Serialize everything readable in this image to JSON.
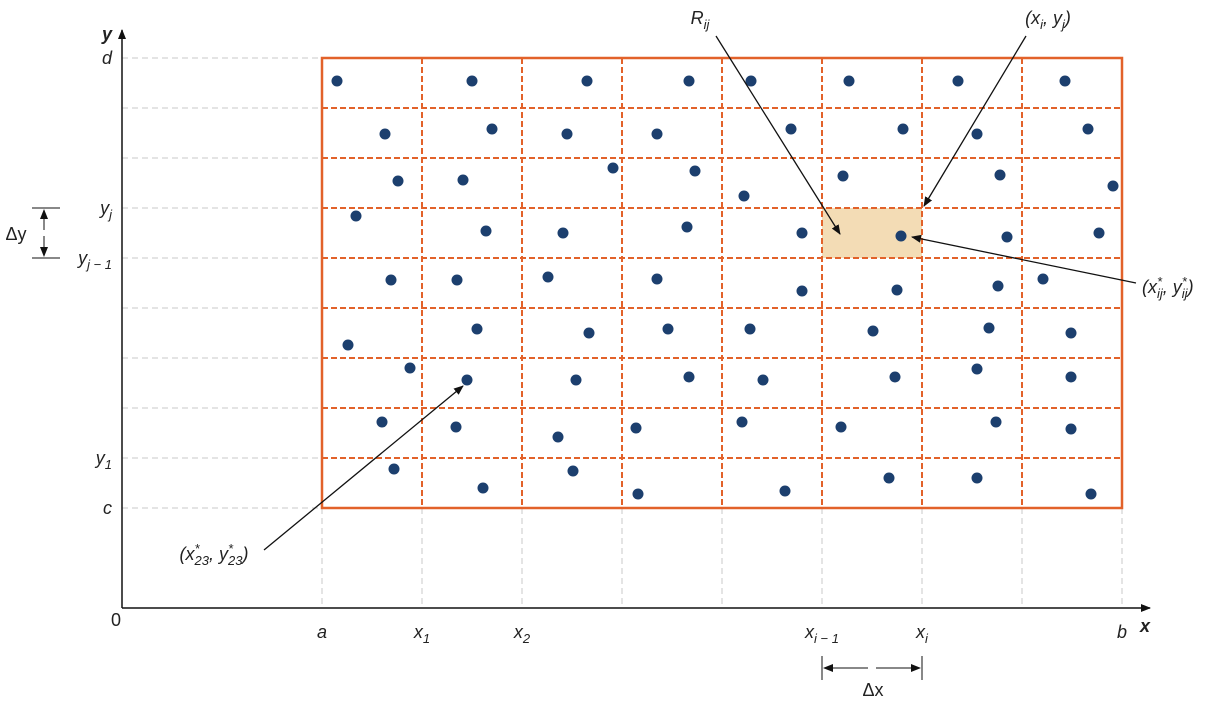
{
  "axes": {
    "x_label": "x",
    "y_label": "y",
    "origin": "0"
  },
  "y_ticks": [
    [
      {
        "text": "d"
      }
    ],
    [
      {
        "text": "y",
        "sub": "j"
      }
    ],
    [
      {
        "text": "y",
        "sub": "j − 1"
      }
    ],
    [
      {
        "text": "y",
        "sub": "1"
      }
    ],
    [
      {
        "text": "c"
      }
    ]
  ],
  "x_ticks": [
    [
      {
        "text": "a"
      }
    ],
    [
      {
        "text": "x",
        "sub": "1"
      }
    ],
    [
      {
        "text": "x",
        "sub": "2"
      }
    ],
    [
      {
        "text": "x",
        "sub": "i − 1"
      }
    ],
    [
      {
        "text": "x",
        "sub": "i"
      }
    ],
    [
      {
        "text": "b"
      }
    ]
  ],
  "increments": {
    "dy": [
      {
        "text": "Δy"
      }
    ],
    "dx": [
      {
        "text": "Δx"
      }
    ]
  },
  "annotations": {
    "rectangle": [
      {
        "text": "R",
        "sub": "ij"
      }
    ],
    "corner": [
      {
        "text": "(x",
        "sub": "i"
      },
      {
        "text": ", y",
        "sub": "j"
      },
      {
        "text": ")"
      }
    ],
    "sample": [
      {
        "text": "(x",
        "sup": "*",
        "sub": "ij"
      },
      {
        "text": ", y",
        "sup": "*",
        "sub": "ij"
      },
      {
        "text": ")"
      }
    ],
    "sample_23": [
      {
        "text": "(x",
        "sup": "*",
        "sub": "23"
      },
      {
        "text": ", y",
        "sup": "*",
        "sub": "23"
      },
      {
        "text": ")"
      }
    ]
  }
}
